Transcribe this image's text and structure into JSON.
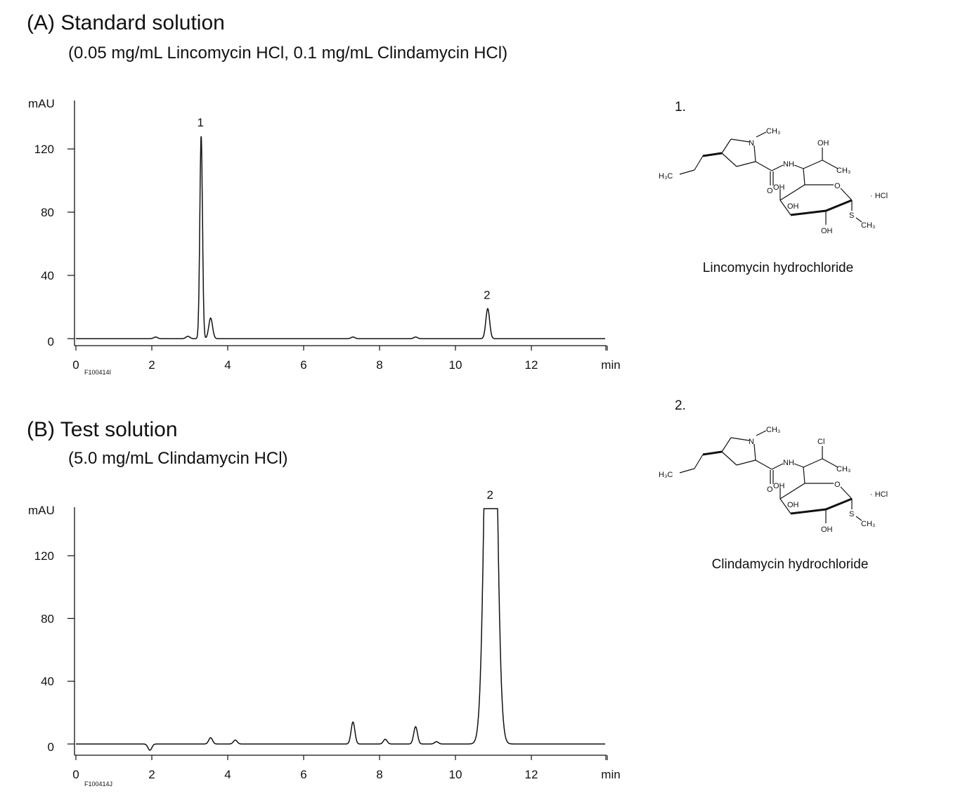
{
  "chart_data": [
    {
      "type": "line",
      "title": "(A) Standard solution",
      "subtitle": "(0.05 mg/mL Lincomycin HCl, 0.1 mg/mL Clindamycin HCl)",
      "ylabel": "mAU",
      "xlabel": "min",
      "code": "F100414I",
      "xlim": [
        0,
        14
      ],
      "ylim": [
        0,
        150
      ],
      "xticks": [
        "0",
        "2",
        "4",
        "6",
        "8",
        "10",
        "12"
      ],
      "yticks": [
        "0",
        "40",
        "80",
        "120"
      ],
      "grid": false,
      "peaks": [
        {
          "rt": 2.1,
          "height": 1,
          "label": ""
        },
        {
          "rt": 2.95,
          "height": 1.5,
          "label": ""
        },
        {
          "rt": 3.3,
          "height": 128,
          "label": "1"
        },
        {
          "rt": 3.55,
          "height": 13,
          "label": ""
        },
        {
          "rt": 7.3,
          "height": 1,
          "label": ""
        },
        {
          "rt": 8.95,
          "height": 1,
          "label": ""
        },
        {
          "rt": 10.85,
          "height": 19,
          "label": "2"
        }
      ]
    },
    {
      "type": "line",
      "title": "(B) Test solution",
      "subtitle": "(5.0 mg/mL Clindamycin HCl)",
      "ylabel": "mAU",
      "xlabel": "min",
      "code": "F100414J",
      "xlim": [
        0,
        14
      ],
      "ylim": [
        0,
        150
      ],
      "xticks": [
        "0",
        "2",
        "4",
        "6",
        "8",
        "10",
        "12"
      ],
      "yticks": [
        "0",
        "40",
        "80",
        "120"
      ],
      "grid": false,
      "off_scale_above": 150,
      "peaks": [
        {
          "rt": 1.95,
          "height": -4,
          "label": ""
        },
        {
          "rt": 3.55,
          "height": 4,
          "label": ""
        },
        {
          "rt": 4.2,
          "height": 2.5,
          "label": ""
        },
        {
          "rt": 7.3,
          "height": 14,
          "label": ""
        },
        {
          "rt": 8.15,
          "height": 3,
          "label": ""
        },
        {
          "rt": 8.95,
          "height": 11,
          "label": ""
        },
        {
          "rt": 9.5,
          "height": 1.5,
          "label": ""
        },
        {
          "rt": 10.93,
          "height": 400,
          "label": "2"
        }
      ]
    }
  ],
  "structures": [
    {
      "number": "1.",
      "name": "Lincomycin hydrochloride",
      "side_group": "OH",
      "labels": {
        "ch3": "CH₃",
        "n": "N",
        "h3c": "H₃C",
        "nh": "NH",
        "o": "O",
        "ring_o": "O",
        "s": "S",
        "oh": "OH",
        "hcl": "· HCl"
      }
    },
    {
      "number": "2.",
      "name": "Clindamycin hydrochloride",
      "side_group": "Cl",
      "labels": {
        "ch3": "CH₃",
        "n": "N",
        "h3c": "H₃C",
        "nh": "NH",
        "o": "O",
        "ring_o": "O",
        "s": "S",
        "oh": "OH",
        "hcl": "· HCl"
      }
    }
  ]
}
